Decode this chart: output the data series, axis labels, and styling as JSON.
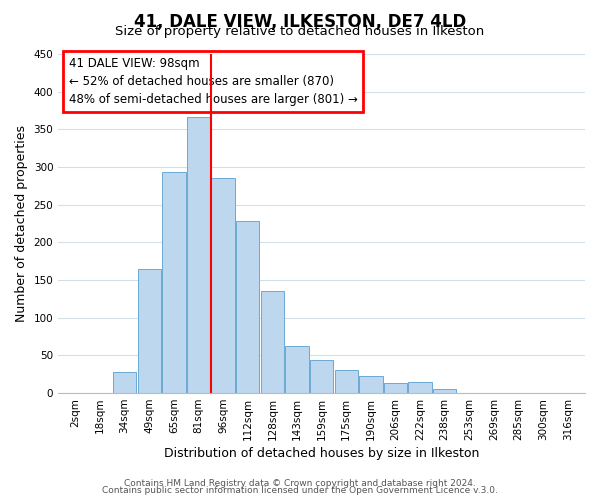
{
  "title": "41, DALE VIEW, ILKESTON, DE7 4LD",
  "subtitle": "Size of property relative to detached houses in Ilkeston",
  "xlabel": "Distribution of detached houses by size in Ilkeston",
  "ylabel": "Number of detached properties",
  "bar_color": "#bdd7ee",
  "bar_edge_color": "#6aaad4",
  "background_color": "#ffffff",
  "grid_color": "#d0dfe8",
  "categories": [
    "2sqm",
    "18sqm",
    "34sqm",
    "49sqm",
    "65sqm",
    "81sqm",
    "96sqm",
    "112sqm",
    "128sqm",
    "143sqm",
    "159sqm",
    "175sqm",
    "190sqm",
    "206sqm",
    "222sqm",
    "238sqm",
    "253sqm",
    "269sqm",
    "285sqm",
    "300sqm",
    "316sqm"
  ],
  "values": [
    0,
    0,
    28,
    165,
    293,
    367,
    285,
    228,
    135,
    62,
    44,
    31,
    23,
    14,
    15,
    5,
    0,
    0,
    0,
    0,
    0
  ],
  "highlight_index": 5,
  "red_line_after_index": 5,
  "ylim": [
    0,
    450
  ],
  "yticks": [
    0,
    50,
    100,
    150,
    200,
    250,
    300,
    350,
    400,
    450
  ],
  "annotation_title": "41 DALE VIEW: 98sqm",
  "annotation_line1": "← 52% of detached houses are smaller (870)",
  "annotation_line2": "48% of semi-detached houses are larger (801) →",
  "footer_line1": "Contains HM Land Registry data © Crown copyright and database right 2024.",
  "footer_line2": "Contains public sector information licensed under the Open Government Licence v.3.0.",
  "title_fontsize": 12,
  "subtitle_fontsize": 9.5,
  "axis_label_fontsize": 9,
  "tick_fontsize": 7.5,
  "annotation_fontsize": 8.5,
  "footer_fontsize": 6.5
}
